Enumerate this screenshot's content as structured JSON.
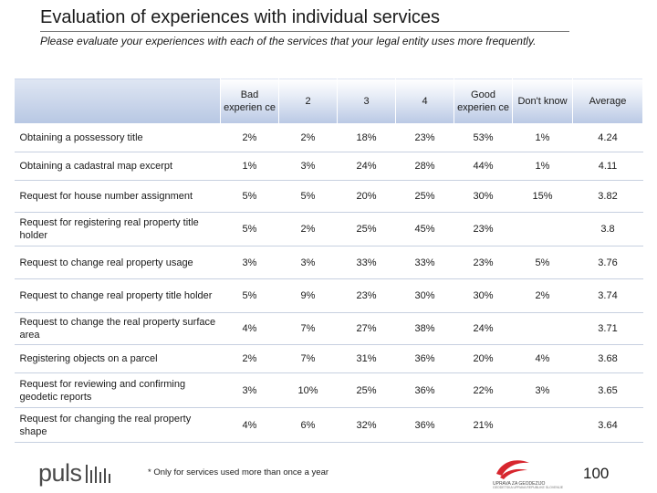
{
  "title": "Evaluation of experiences with individual services",
  "subtitle": "Please evaluate your experiences with each of the services that your legal entity uses more frequently.",
  "table": {
    "headers": [
      "",
      "Bad experien ce",
      "2",
      "3",
      "4",
      "Good experien ce",
      "Don't know",
      "Average"
    ],
    "rows": [
      {
        "label": "Obtaining a possessory title",
        "values": [
          "2%",
          "2%",
          "18%",
          "23%",
          "53%",
          "1%",
          "4.24"
        ]
      },
      {
        "label": "Obtaining a cadastral map excerpt",
        "values": [
          "1%",
          "3%",
          "24%",
          "28%",
          "44%",
          "1%",
          "4.11"
        ]
      },
      {
        "label": "Request for house number assignment",
        "values": [
          "5%",
          "5%",
          "20%",
          "25%",
          "30%",
          "15%",
          "3.82"
        ]
      },
      {
        "label": "Request for registering real property title holder",
        "values": [
          "5%",
          "2%",
          "25%",
          "45%",
          "23%",
          "",
          "3.8"
        ]
      },
      {
        "label": "Request to change real property usage",
        "values": [
          "3%",
          "3%",
          "33%",
          "33%",
          "23%",
          "5%",
          "3.76"
        ]
      },
      {
        "label": "Request to change real property title holder",
        "values": [
          "5%",
          "9%",
          "23%",
          "30%",
          "30%",
          "2%",
          "3.74"
        ]
      },
      {
        "label": "Request to change the real property surface area",
        "values": [
          "4%",
          "7%",
          "27%",
          "38%",
          "24%",
          "",
          "3.71"
        ]
      },
      {
        "label": "Registering objects on a parcel",
        "values": [
          "2%",
          "7%",
          "31%",
          "36%",
          "20%",
          "4%",
          "3.68"
        ]
      },
      {
        "label": "Request for reviewing and confirming geodetic reports",
        "values": [
          "3%",
          "10%",
          "25%",
          "36%",
          "22%",
          "3%",
          "3.65"
        ]
      },
      {
        "label": "Request for changing the real property shape",
        "values": [
          "4%",
          "6%",
          "32%",
          "36%",
          "21%",
          "",
          "3.64"
        ]
      }
    ]
  },
  "footnote": "* Only for services used more than once a year",
  "page_number": "100",
  "logos": {
    "puls": "puls",
    "gz_caption": "UPRAVA ZA GEODEZIJO",
    "gz_subcaption": "GEODETSKA UPRAVA REPUBLIKE SLOVENIJE"
  },
  "colors": {
    "header_gradient_top": "#ffffff",
    "header_gradient_bottom": "#b9c8e4",
    "row_rule": "#c7d0e0",
    "logo_red": "#d7262e"
  }
}
